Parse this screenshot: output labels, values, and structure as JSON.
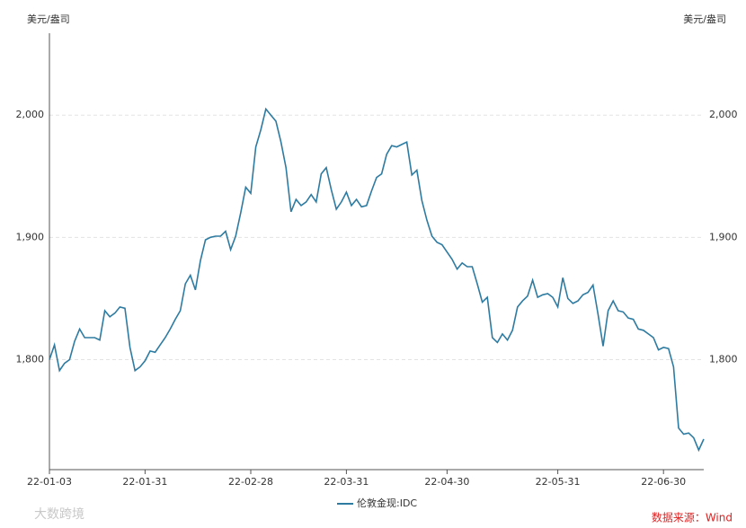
{
  "chart_data": {
    "type": "line",
    "y_label": "美元/盎司",
    "y2_label": "美元/盎司",
    "source": "数据来源：Wind",
    "watermark": "大数跨境",
    "categories": [
      "22-01-03",
      null,
      null,
      null,
      null,
      null,
      null,
      null,
      null,
      null,
      null,
      null,
      null,
      null,
      null,
      null,
      null,
      null,
      null,
      "22-01-31",
      null,
      null,
      null,
      null,
      null,
      null,
      null,
      null,
      null,
      null,
      null,
      null,
      null,
      null,
      null,
      null,
      null,
      null,
      null,
      null,
      "22-02-28",
      null,
      null,
      null,
      null,
      null,
      null,
      null,
      null,
      null,
      null,
      null,
      null,
      null,
      null,
      null,
      null,
      null,
      null,
      "22-03-31",
      null,
      null,
      null,
      null,
      null,
      null,
      null,
      null,
      null,
      null,
      null,
      null,
      null,
      null,
      null,
      null,
      null,
      null,
      null,
      "22-04-30",
      null,
      null,
      null,
      null,
      null,
      null,
      null,
      null,
      null,
      null,
      null,
      null,
      null,
      null,
      null,
      null,
      null,
      null,
      null,
      null,
      null,
      "22-05-31",
      null,
      null,
      null,
      null,
      null,
      null,
      null,
      null,
      null,
      null,
      null,
      null,
      null,
      null,
      null,
      null,
      null,
      null,
      null,
      null,
      "22-06-30",
      null,
      null,
      null,
      null,
      null,
      null,
      null,
      null
    ],
    "series": [
      {
        "name": "伦敦金现:IDC",
        "color": "#2e7ba1",
        "values": [
          1800,
          1812,
          1791,
          1797,
          1800,
          1815,
          1825,
          1818,
          1818,
          1818,
          1816,
          1840,
          1835,
          1838,
          1843,
          1842,
          1810,
          1791,
          1794,
          1799,
          1807,
          1806,
          1812,
          1818,
          1825,
          1833,
          1840,
          1862,
          1869,
          1857,
          1881,
          1898,
          1900,
          1901,
          1901,
          1905,
          1890,
          1901,
          1920,
          1941,
          1936,
          1974,
          1988,
          2005,
          2000,
          1995,
          1978,
          1957,
          1921,
          1931,
          1926,
          1929,
          1935,
          1929,
          1952,
          1957,
          1939,
          1923,
          1929,
          1937,
          1926,
          1931,
          1925,
          1926,
          1938,
          1949,
          1952,
          1968,
          1975,
          1974,
          1976,
          1978,
          1951,
          1955,
          1930,
          1914,
          1901,
          1896,
          1894,
          1888,
          1882,
          1874,
          1879,
          1876,
          1876,
          1862,
          1847,
          1851,
          1818,
          1814,
          1821,
          1816,
          1824,
          1843,
          1848,
          1852,
          1865,
          1851,
          1853,
          1854,
          1851,
          1843,
          1867,
          1850,
          1846,
          1848,
          1853,
          1855,
          1861,
          1837,
          1811,
          1840,
          1848,
          1840,
          1839,
          1834,
          1833,
          1825,
          1824,
          1821,
          1818,
          1808,
          1810,
          1809,
          1794,
          1744,
          1739,
          1740,
          1736,
          1726,
          1735
        ]
      }
    ],
    "ylim": [
      1710,
      2067
    ],
    "yticks": [
      {
        "value": 1800,
        "label": "1,800"
      },
      {
        "value": 1900,
        "label": "1,900"
      },
      {
        "value": 2000,
        "label": "2,000"
      }
    ],
    "y2lim": [
      1710,
      2067
    ],
    "y2ticks": [
      {
        "value": 1800,
        "label": "1,800"
      },
      {
        "value": 1900,
        "label": "1,900"
      },
      {
        "value": 2000,
        "label": "2,000"
      }
    ],
    "grid": true,
    "legend": "bottom"
  }
}
